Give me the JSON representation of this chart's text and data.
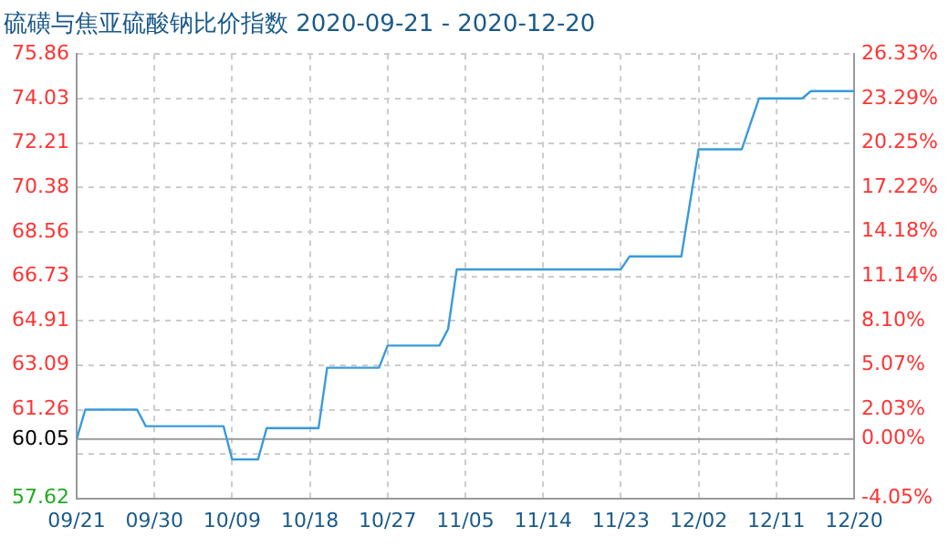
{
  "chart_data": {
    "type": "line",
    "title": "硫磺与焦亚硫酸钠比价指数 2020-09-21 - 2020-12-20",
    "xlim": [
      "2020-09-21",
      "2020-12-20"
    ],
    "xticks": [
      {
        "value": "2020-09-21",
        "label": "09/21"
      },
      {
        "value": "2020-09-30",
        "label": "09/30"
      },
      {
        "value": "2020-10-09",
        "label": "10/09"
      },
      {
        "value": "2020-10-18",
        "label": "10/18"
      },
      {
        "value": "2020-10-27",
        "label": "10/27"
      },
      {
        "value": "2020-11-05",
        "label": "11/05"
      },
      {
        "value": "2020-11-14",
        "label": "11/14"
      },
      {
        "value": "2020-11-23",
        "label": "11/23"
      },
      {
        "value": "2020-12-02",
        "label": "12/02"
      },
      {
        "value": "2020-12-11",
        "label": "12/11"
      },
      {
        "value": "2020-12-20",
        "label": "12/20"
      }
    ],
    "ylim": [
      57.62,
      75.86
    ],
    "yticks": [
      57.62,
      {
        "value": 59.44,
        "label": null
      },
      60.05,
      61.26,
      63.09,
      64.91,
      66.73,
      68.56,
      70.38,
      72.21,
      74.03,
      75.86
    ],
    "y2lim": [
      -4.05,
      26.33
    ],
    "y2ticks": [
      {
        "value": -4.05,
        "label": "-4.05%"
      },
      {
        "value": -1.01,
        "label": null
      },
      {
        "value": 0,
        "label": "0.00%"
      },
      {
        "value": 2.03,
        "label": "2.03%"
      },
      {
        "value": 5.07,
        "label": "5.07%"
      },
      {
        "value": 8.1,
        "label": "8.10%"
      },
      {
        "value": 11.14,
        "label": "11.14%"
      },
      {
        "value": 14.18,
        "label": "14.18%"
      },
      {
        "value": 17.22,
        "label": "17.22%"
      },
      {
        "value": 20.25,
        "label": "20.25%"
      },
      {
        "value": 23.29,
        "label": "23.29%"
      },
      {
        "value": 26.33,
        "label": "26.33%"
      }
    ],
    "ref_lines": [
      {
        "axis": "y",
        "value": 60.05,
        "color": "#999999"
      }
    ],
    "grid": true,
    "legend": false,
    "marker": "none",
    "line_style": "solid",
    "series": [
      {
        "color": "#3a9ad9",
        "x": [
          "2020-09-21",
          "2020-09-22",
          "2020-09-28",
          "2020-09-29",
          "2020-10-08",
          "2020-10-09",
          "2020-10-12",
          "2020-10-13",
          "2020-10-19",
          "2020-10-20",
          "2020-10-26",
          "2020-10-27",
          "2020-11-02",
          "2020-11-03",
          "2020-11-04",
          "2020-11-23",
          "2020-11-24",
          "2020-11-30",
          "2020-12-02",
          "2020-12-07",
          "2020-12-09",
          "2020-12-14",
          "2020-12-15",
          "2020-12-20"
        ],
        "values": [
          60.05,
          61.26,
          61.26,
          60.58,
          60.58,
          59.22,
          59.22,
          60.5,
          60.5,
          62.98,
          62.98,
          63.89,
          63.89,
          64.57,
          67.02,
          67.02,
          67.55,
          67.55,
          71.95,
          71.95,
          74.04,
          74.04,
          74.34,
          74.34
        ]
      }
    ]
  }
}
